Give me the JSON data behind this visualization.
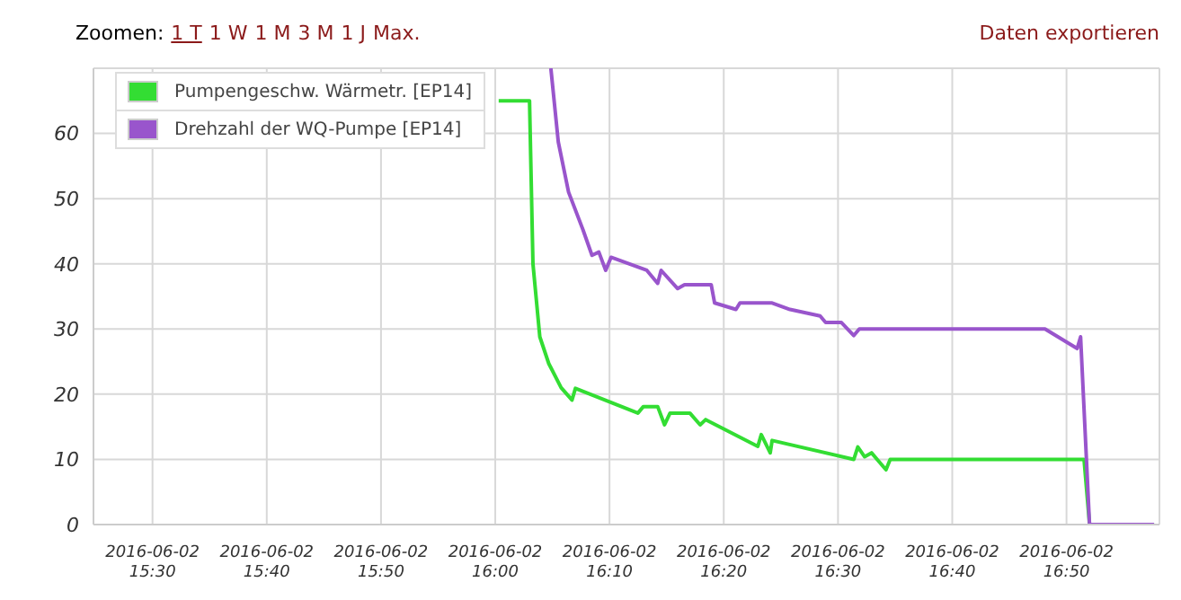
{
  "chart_data": {
    "type": "line",
    "annotations": [
      "Zoomen:",
      "1 T",
      "1 W",
      "1 M",
      "3 M",
      "1 J",
      "Max.",
      "Daten exportieren"
    ],
    "xlim": [
      "2016-06-02T15:24:50",
      "2016-06-02T16:58:08"
    ],
    "xticks": [
      {
        "value": "2016-06-02T15:30",
        "label": "2016-06-02 15:30"
      },
      {
        "value": "2016-06-02T15:40",
        "label": "2016-06-02 15:40"
      },
      {
        "value": "2016-06-02T15:50",
        "label": "2016-06-02 15:50"
      },
      {
        "value": "2016-06-02T16:00",
        "label": "2016-06-02 16:00"
      },
      {
        "value": "2016-06-02T16:10",
        "label": "2016-06-02 16:10"
      },
      {
        "value": "2016-06-02T16:20",
        "label": "2016-06-02 16:20"
      },
      {
        "value": "2016-06-02T16:30",
        "label": "2016-06-02 16:30"
      },
      {
        "value": "2016-06-02T16:40",
        "label": "2016-06-02 16:40"
      },
      {
        "value": "2016-06-02T16:50",
        "label": "2016-06-02 16:50"
      }
    ],
    "ylim": [
      0,
      70
    ],
    "yticks": [
      0,
      10,
      20,
      30,
      40,
      50,
      60
    ],
    "grid": true,
    "legend": "top left",
    "marker": "none",
    "line_style": "solid",
    "series": [
      {
        "name": "Pumpengeschw. Wärmetr. [EP14]",
        "color": "#33dd33",
        "x": [
          "2016-06-02T16:00:18",
          "2016-06-02T16:03:00",
          "2016-06-02T16:03:18",
          "2016-06-02T16:03:54",
          "2016-06-02T16:04:41",
          "2016-06-02T16:05:46",
          "2016-06-02T16:06:43",
          "2016-06-02T16:07:01",
          "2016-06-02T16:12:29",
          "2016-06-02T16:12:58",
          "2016-06-02T16:14:13",
          "2016-06-02T16:14:49",
          "2016-06-02T16:15:18",
          "2016-06-02T16:17:02",
          "2016-06-02T16:17:56",
          "2016-06-02T16:18:25",
          "2016-06-02T16:22:59",
          "2016-06-02T16:23:17",
          "2016-06-02T16:24:04",
          "2016-06-02T16:24:14",
          "2016-06-02T16:31:23",
          "2016-06-02T16:31:44",
          "2016-06-02T16:32:20",
          "2016-06-02T16:32:56",
          "2016-06-02T16:34:12",
          "2016-06-02T16:34:34",
          "2016-06-02T16:51:32",
          "2016-06-02T16:52:01",
          "2016-06-02T16:57:40"
        ],
        "values": [
          65,
          65,
          40,
          28.8,
          24.7,
          21,
          19.1,
          20.9,
          17.1,
          18.1,
          18.1,
          15.3,
          17.1,
          17.1,
          15.3,
          16.1,
          12,
          13.8,
          11,
          12.9,
          10,
          11.9,
          10.4,
          11,
          8.4,
          10,
          10,
          0,
          0
        ]
      },
      {
        "name": "Drehzahl der WQ-Pumpe [EP14]",
        "color": "#9955cc",
        "x": [
          "2016-06-02T16:04:52",
          "2016-06-02T16:05:31",
          "2016-06-02T16:06:25",
          "2016-06-02T16:07:41",
          "2016-06-02T16:08:28",
          "2016-06-02T16:09:04",
          "2016-06-02T16:09:40",
          "2016-06-02T16:10:08",
          "2016-06-02T16:13:16",
          "2016-06-02T16:14:13",
          "2016-06-02T16:14:31",
          "2016-06-02T16:15:58",
          "2016-06-02T16:16:34",
          "2016-06-02T16:18:54",
          "2016-06-02T16:19:12",
          "2016-06-02T16:21:04",
          "2016-06-02T16:21:25",
          "2016-06-02T16:24:14",
          "2016-06-02T16:25:48",
          "2016-06-02T16:28:26",
          "2016-06-02T16:28:55",
          "2016-06-02T16:30:18",
          "2016-06-02T16:31:23",
          "2016-06-02T16:31:52",
          "2016-06-02T16:48:07",
          "2016-06-02T16:50:56",
          "2016-06-02T16:51:14",
          "2016-06-02T16:52:01",
          "2016-06-02T16:57:40"
        ],
        "values": [
          70,
          58.7,
          51,
          45.2,
          41.3,
          41.8,
          39,
          41,
          39,
          37,
          39,
          36.2,
          36.8,
          36.8,
          34,
          33,
          34,
          34,
          33,
          32,
          31,
          31,
          29,
          30,
          30,
          27,
          28.8,
          0,
          0
        ]
      }
    ]
  }
}
